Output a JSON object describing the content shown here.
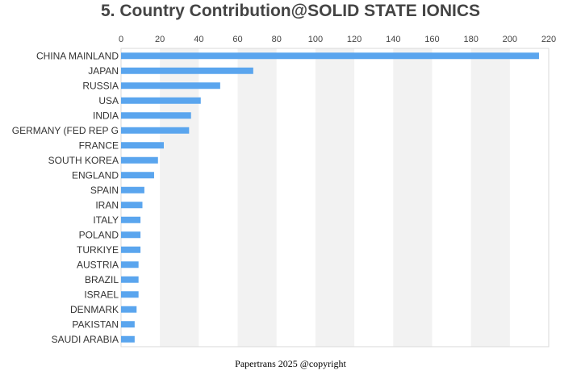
{
  "chart_data": {
    "type": "bar",
    "orientation": "horizontal",
    "title": "5. Country Contribution@SOLID STATE IONICS",
    "xlabel": "",
    "ylabel": "",
    "xlim": [
      0,
      220
    ],
    "x_ticks": [
      0,
      20,
      40,
      60,
      80,
      100,
      120,
      140,
      160,
      180,
      200,
      220
    ],
    "x_axis_position": "top",
    "grid": "alternating vertical bands",
    "categories": [
      "CHINA MAINLAND",
      "JAPAN",
      "RUSSIA",
      "USA",
      "INDIA",
      "GERMANY (FED REP G",
      "FRANCE",
      "SOUTH KOREA",
      "ENGLAND",
      "SPAIN",
      "IRAN",
      "ITALY",
      "POLAND",
      "TURKIYE",
      "AUSTRIA",
      "BRAZIL",
      "ISRAEL",
      "DENMARK",
      "PAKISTAN",
      "SAUDI ARABIA"
    ],
    "values": [
      215,
      68,
      51,
      41,
      36,
      35,
      22,
      19,
      17,
      12,
      11,
      10,
      10,
      10,
      9,
      9,
      9,
      8,
      7,
      7
    ],
    "bar_color": "#5aa5ee"
  },
  "footer": {
    "text": "Papertrans 2025 @copyright"
  },
  "colors": {
    "band": "#f2f2f2",
    "border": "#d9d9d9",
    "bar": "#5aa5ee"
  }
}
